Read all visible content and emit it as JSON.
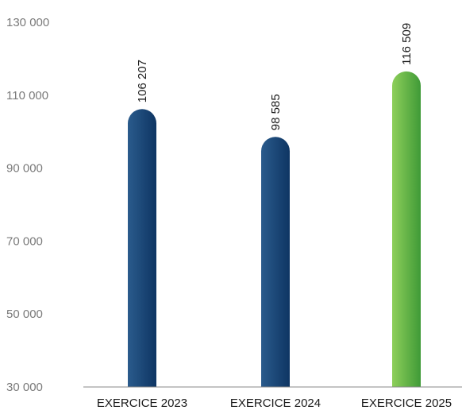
{
  "chart_data": {
    "type": "bar",
    "categories": [
      "EXERCICE 2023",
      "EXERCICE 2024",
      "EXERCICE 2025"
    ],
    "values": [
      106207,
      98585,
      116509
    ],
    "value_labels": [
      "106 207",
      "98 585",
      "116 509"
    ],
    "ylim": [
      30000,
      130000
    ],
    "yticks": [
      30000,
      50000,
      70000,
      90000,
      110000,
      130000
    ],
    "ytick_labels": [
      "30 000",
      "50 000",
      "70 000",
      "90 000",
      "110 000",
      "130 000"
    ],
    "grid": false,
    "bar_colors": [
      {
        "light": "#2a5b8c",
        "dark": "#0e3563"
      },
      {
        "light": "#2a5b8c",
        "dark": "#0e3563"
      },
      {
        "light": "#8ecf5a",
        "dark": "#3f9a37"
      }
    ],
    "axis_color": "#8a8a8a"
  }
}
